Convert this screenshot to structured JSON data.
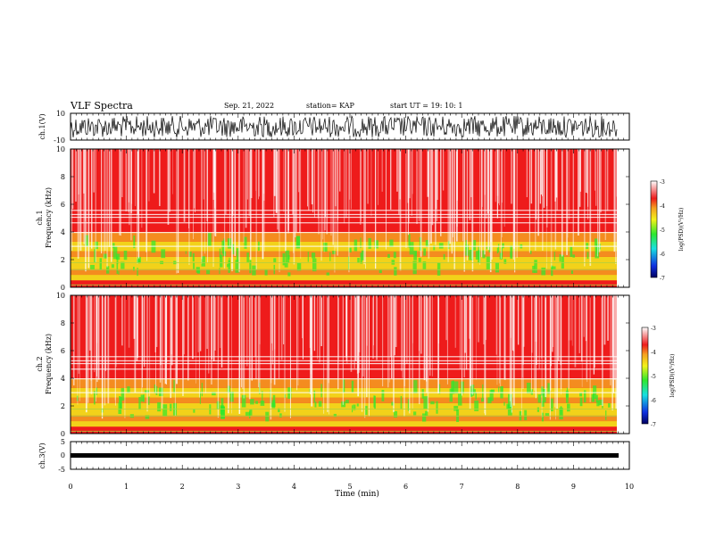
{
  "header": {
    "title": "VLF Spectra",
    "date": "Sep. 21, 2022",
    "station": "station= KAP",
    "start": "start  UT =   19: 10: 1"
  },
  "chart_data": [
    {
      "type": "line",
      "name": "ch1-waveform",
      "ylabel": "ch.1(V)",
      "ylim": [
        -10,
        10
      ],
      "yticks": [
        "10",
        "-10"
      ],
      "xlim": [
        0,
        10
      ]
    },
    {
      "type": "heatmap",
      "name": "ch1-spectrogram",
      "ylabel": "ch.1\nFrequency (kHz)",
      "ylim": [
        0,
        10
      ],
      "yticks": [
        "0",
        "2",
        "4",
        "6",
        "8",
        "10"
      ],
      "xlim": [
        0,
        10
      ],
      "colorbar": {
        "label": "log(PSD)(V²/Hz)",
        "ticks": [
          "-3",
          "-4",
          "-5",
          "-6",
          "-7"
        ],
        "range": [
          -7,
          -3
        ]
      }
    },
    {
      "type": "heatmap",
      "name": "ch2-spectrogram",
      "ylabel": "ch.2\nFrequency (kHz)",
      "ylim": [
        0,
        10
      ],
      "yticks": [
        "0",
        "2",
        "4",
        "6",
        "8",
        "10"
      ],
      "xlim": [
        0,
        10
      ],
      "colorbar": {
        "label": "log(PSD)(V²/Hz)",
        "ticks": [
          "-3",
          "-4",
          "-5",
          "-6",
          "-7"
        ],
        "range": [
          -7,
          -3
        ]
      }
    },
    {
      "type": "line",
      "name": "ch3-waveform",
      "ylabel": "ch.3(V)",
      "ylim": [
        -5,
        5
      ],
      "yticks": [
        "5",
        "0",
        "-5"
      ],
      "xlim": [
        0,
        10
      ]
    }
  ],
  "xaxis": {
    "label": "Time (min)",
    "ticks": [
      "0",
      "1",
      "2",
      "3",
      "4",
      "5",
      "6",
      "7",
      "8",
      "9",
      "10"
    ]
  },
  "colors": {
    "white": "#ffffff",
    "red": "#ee1b1b",
    "orange": "#f5a020",
    "yellow": "#f2f21a",
    "green": "#2ee82e",
    "cyan": "#18e0e0",
    "blue": "#1030e0",
    "navy": "#000060"
  }
}
